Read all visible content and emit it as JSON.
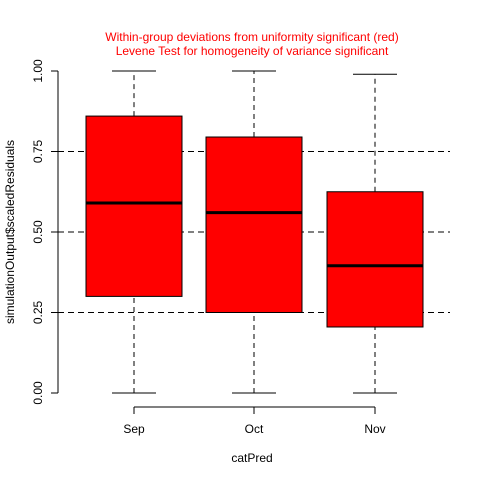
{
  "chart_data": {
    "type": "boxplot",
    "title_lines": [
      "Within-group deviations from uniformity significant (red)",
      "Levene Test for homogeneity of variance significant"
    ],
    "xlabel": "catPred",
    "ylabel": "simulationOutput$scaledResiduals",
    "categories": [
      "Sep",
      "Oct",
      "Nov"
    ],
    "boxes": [
      {
        "min": 0.0,
        "q1": 0.3,
        "median": 0.59,
        "q3": 0.86,
        "max": 1.0
      },
      {
        "min": 0.0,
        "q1": 0.25,
        "median": 0.56,
        "q3": 0.795,
        "max": 1.0
      },
      {
        "min": 0.0,
        "q1": 0.205,
        "median": 0.395,
        "q3": 0.625,
        "max": 0.99
      }
    ],
    "ylim": [
      0,
      1
    ],
    "yticks": [
      0.0,
      0.25,
      0.5,
      0.75,
      1.0
    ],
    "ytick_labels": [
      "0.00",
      "0.25",
      "0.50",
      "0.75",
      "1.00"
    ],
    "reference_lines": [
      0.25,
      0.5,
      0.75
    ],
    "box_color": "#ff0000",
    "title_color": "#ff0000"
  }
}
